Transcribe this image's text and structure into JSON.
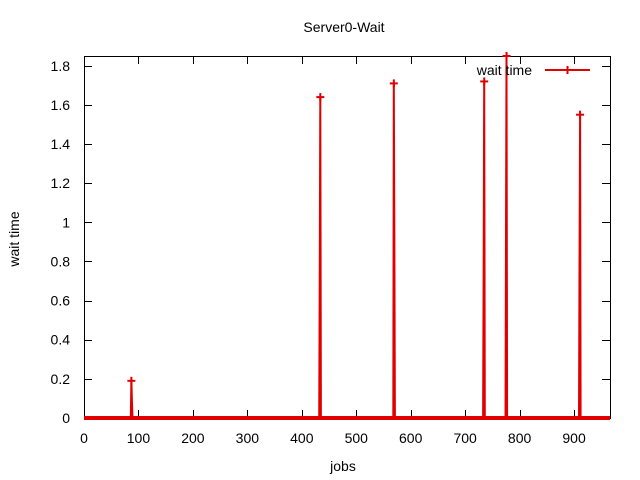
{
  "chart_data": {
    "type": "line",
    "title": "Server0-Wait",
    "xlabel": "jobs",
    "ylabel": "wait time",
    "xlim": [
      0,
      966
    ],
    "ylim": [
      0,
      1.85
    ],
    "x_ticks": [
      0,
      100,
      200,
      300,
      400,
      500,
      600,
      700,
      800,
      900
    ],
    "y_ticks": [
      0,
      0.2,
      0.4,
      0.6,
      0.8,
      1,
      1.2,
      1.4,
      1.6,
      1.8
    ],
    "y_tick_labels": [
      "0",
      "0.2",
      "0.4",
      "0.6",
      "0.8",
      "1",
      "1.2",
      "1.4",
      "1.6",
      "1.8"
    ],
    "grid": false,
    "legend_position": "top-right",
    "series": [
      {
        "name": "wait time",
        "color": "#e00000",
        "points": [
          {
            "x": 0,
            "y": 0
          },
          {
            "x": 86,
            "y": 0
          },
          {
            "x": 87,
            "y": 0.19
          },
          {
            "x": 88,
            "y": 0.09
          },
          {
            "x": 89,
            "y": 0
          },
          {
            "x": 432,
            "y": 0
          },
          {
            "x": 433,
            "y": 0.82
          },
          {
            "x": 434,
            "y": 1.64
          },
          {
            "x": 435,
            "y": 0
          },
          {
            "x": 568,
            "y": 0
          },
          {
            "x": 569,
            "y": 1.71
          },
          {
            "x": 570,
            "y": 0.85
          },
          {
            "x": 571,
            "y": 0
          },
          {
            "x": 733,
            "y": 0
          },
          {
            "x": 734,
            "y": 0.86
          },
          {
            "x": 735,
            "y": 1.72
          },
          {
            "x": 736,
            "y": 0
          },
          {
            "x": 774,
            "y": 0
          },
          {
            "x": 775,
            "y": 0.93
          },
          {
            "x": 776,
            "y": 1.85
          },
          {
            "x": 777,
            "y": 0
          },
          {
            "x": 909,
            "y": 0
          },
          {
            "x": 910,
            "y": 0.77
          },
          {
            "x": 911,
            "y": 1.55
          },
          {
            "x": 912,
            "y": 0
          },
          {
            "x": 966,
            "y": 0
          }
        ],
        "markers": [
          {
            "x": 87,
            "y": 0.19
          },
          {
            "x": 434,
            "y": 1.64
          },
          {
            "x": 569,
            "y": 1.71
          },
          {
            "x": 735,
            "y": 1.72
          },
          {
            "x": 776,
            "y": 1.85
          },
          {
            "x": 911,
            "y": 1.55
          }
        ]
      }
    ]
  }
}
